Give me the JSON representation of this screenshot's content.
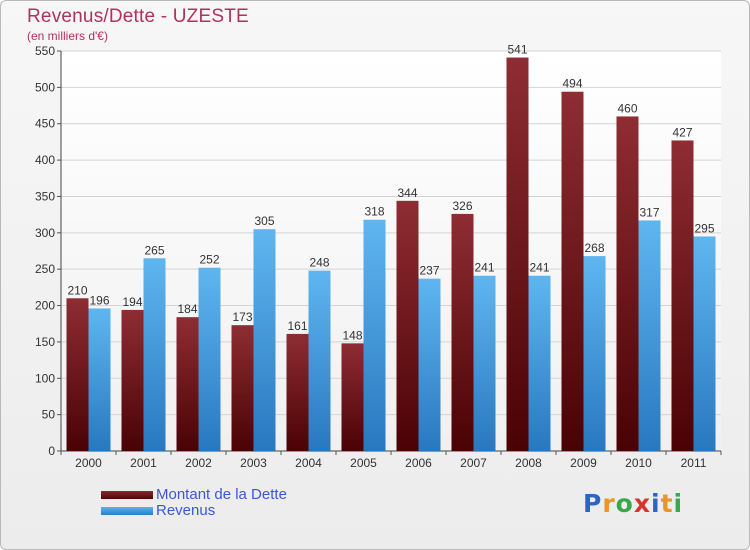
{
  "chart_data": {
    "type": "bar",
    "title": "Revenus/Dette - UZESTE",
    "subtitle": "(en milliers d'€)",
    "categories": [
      "2000",
      "2001",
      "2002",
      "2003",
      "2004",
      "2005",
      "2006",
      "2007",
      "2008",
      "2009",
      "2010",
      "2011"
    ],
    "series": [
      {
        "name": "Montant de la Dette",
        "values": [
          210,
          194,
          184,
          173,
          161,
          148,
          344,
          326,
          541,
          494,
          460,
          427
        ],
        "color": "#7a1a1e"
      },
      {
        "name": "Revenus",
        "values": [
          196,
          265,
          252,
          305,
          248,
          318,
          237,
          241,
          241,
          268,
          317,
          295
        ],
        "color": "#3d9ce0"
      }
    ],
    "ylim": [
      0,
      550
    ],
    "yticks": [
      0,
      50,
      100,
      150,
      200,
      250,
      300,
      350,
      400,
      450,
      500,
      550
    ],
    "grid": true,
    "legend_position": "bottom-left"
  },
  "logo": {
    "text": "Proxiti",
    "letters": [
      "P",
      "r",
      "o",
      "x",
      "i",
      "t",
      "i"
    ],
    "colors": [
      "#2b63c7",
      "#e8952a",
      "#3aa84a",
      "#d9342b",
      "#2b63c7",
      "#e8952a",
      "#3aa84a"
    ]
  }
}
